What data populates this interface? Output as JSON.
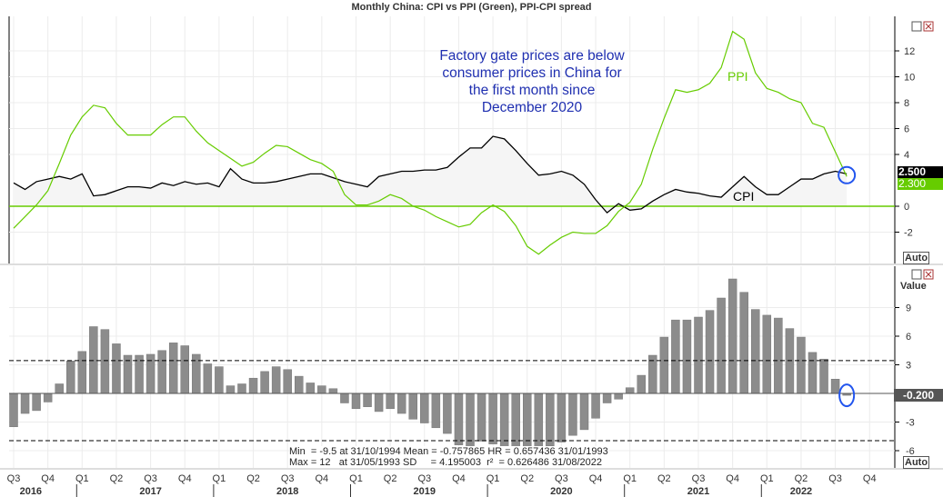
{
  "title": "Monthly China: CPI vs PPI (Green), PPI-CPI spread",
  "colors": {
    "cpi": "#000000",
    "ppi": "#66cc00",
    "bars": "#8c8c8c",
    "annotation": "#1f2fb0",
    "marker": "#2255ee"
  },
  "annotation": [
    "Factory gate prices are below",
    "consumer prices in China for",
    "the first month since",
    "December 2020"
  ],
  "controls": {
    "auto_label": "Auto"
  },
  "chart_data": [
    {
      "type": "line",
      "x_start": "2016-07",
      "x_end": "2022-08",
      "frequency": "monthly",
      "ylim": [
        -4,
        14
      ],
      "yticks": [
        12,
        10,
        8,
        6,
        4,
        0,
        -2
      ],
      "grid": true,
      "series": [
        {
          "name": "CPI",
          "color": "#000000",
          "last_label": "2.500",
          "values": [
            1.8,
            1.3,
            1.9,
            2.1,
            2.3,
            2.1,
            2.5,
            0.8,
            0.9,
            1.2,
            1.5,
            1.5,
            1.4,
            1.8,
            1.6,
            1.9,
            1.7,
            1.8,
            1.5,
            2.9,
            2.1,
            1.8,
            1.8,
            1.9,
            2.1,
            2.3,
            2.5,
            2.5,
            2.2,
            1.9,
            1.7,
            1.5,
            2.3,
            2.5,
            2.7,
            2.7,
            2.8,
            2.8,
            3.0,
            3.8,
            4.5,
            4.5,
            5.4,
            5.2,
            4.3,
            3.3,
            2.4,
            2.5,
            2.7,
            2.4,
            1.7,
            0.5,
            -0.5,
            0.2,
            -0.3,
            -0.2,
            0.4,
            0.9,
            1.3,
            1.1,
            1.0,
            0.8,
            0.7,
            1.5,
            2.3,
            1.5,
            0.9,
            0.9,
            1.5,
            2.1,
            2.1,
            2.5,
            2.7,
            2.5
          ]
        },
        {
          "name": "PPI",
          "color": "#66cc00",
          "last_label": "2.300",
          "values": [
            -1.7,
            -0.8,
            0.1,
            1.2,
            3.3,
            5.5,
            6.9,
            7.8,
            7.6,
            6.4,
            5.5,
            5.5,
            5.5,
            6.3,
            6.9,
            6.9,
            5.8,
            4.9,
            4.3,
            3.7,
            3.1,
            3.4,
            4.1,
            4.7,
            4.6,
            4.1,
            3.6,
            3.3,
            2.7,
            0.9,
            0.1,
            0.1,
            0.4,
            0.9,
            0.6,
            0.0,
            -0.3,
            -0.8,
            -1.2,
            -1.6,
            -1.4,
            -0.5,
            0.1,
            -0.4,
            -1.5,
            -3.1,
            -3.7,
            -3.0,
            -2.4,
            -2.0,
            -2.1,
            -2.1,
            -1.5,
            -0.4,
            0.3,
            1.7,
            4.4,
            6.8,
            9.0,
            8.8,
            9.0,
            9.5,
            10.7,
            13.5,
            12.9,
            10.3,
            9.1,
            8.8,
            8.3,
            8.0,
            6.4,
            6.1,
            4.2,
            2.3
          ]
        }
      ]
    },
    {
      "type": "bar",
      "ylabel": "Value",
      "ylim": [
        -7,
        12
      ],
      "yticks": [
        9,
        6,
        3,
        -3,
        -6
      ],
      "last_label": "-0.200",
      "reference_lines": [
        3.44,
        -4.95
      ],
      "values": [
        -3.5,
        -2.1,
        -1.8,
        -0.9,
        1.0,
        3.4,
        4.4,
        7.0,
        6.7,
        5.2,
        4.0,
        4.0,
        4.1,
        4.5,
        5.3,
        5.0,
        4.1,
        3.1,
        2.8,
        0.8,
        1.0,
        1.6,
        2.3,
        2.8,
        2.5,
        1.8,
        1.1,
        0.8,
        0.5,
        -1.0,
        -1.6,
        -1.4,
        -1.9,
        -1.6,
        -2.1,
        -2.7,
        -3.1,
        -3.6,
        -4.2,
        -5.4,
        -5.9,
        -5.0,
        -5.3,
        -5.6,
        -5.8,
        -6.4,
        -6.1,
        -5.5,
        -5.1,
        -4.4,
        -3.8,
        -2.6,
        -1.0,
        -0.6,
        0.6,
        1.9,
        4.0,
        5.9,
        7.7,
        7.7,
        8.0,
        8.7,
        10.0,
        12.0,
        10.6,
        8.8,
        8.2,
        7.9,
        6.8,
        5.9,
        4.3,
        3.6,
        1.5,
        -0.2
      ],
      "stats": [
        "Min  = -9.5 at 31/10/1994 Mean = -0.757865 HR = 0.657436 31/01/1993",
        "Max = 12   at 31/05/1993 SD     = 4.195003  r²  = 0.626486 31/08/2022"
      ]
    }
  ],
  "x_axis": {
    "quarters": [
      "Q3",
      "Q4",
      "Q1",
      "Q2",
      "Q3",
      "Q4",
      "Q1",
      "Q2",
      "Q3",
      "Q4",
      "Q1",
      "Q2",
      "Q3",
      "Q4",
      "Q1",
      "Q2",
      "Q3",
      "Q4",
      "Q1",
      "Q2",
      "Q3",
      "Q4",
      "Q1",
      "Q2",
      "Q3",
      "Q4"
    ],
    "years": [
      "2016",
      "2017",
      "2018",
      "2019",
      "2020",
      "2021",
      "2022"
    ]
  }
}
